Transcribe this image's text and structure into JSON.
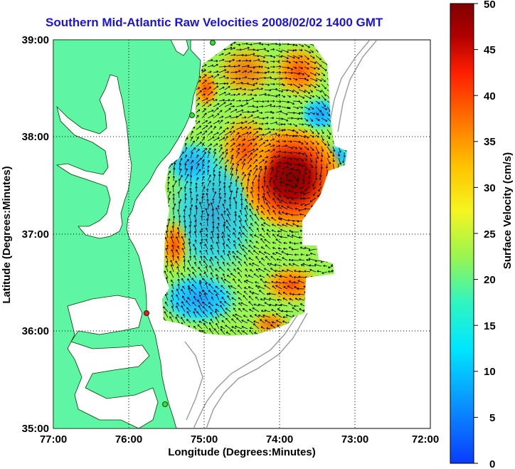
{
  "title": "Southern Mid-Atlantic Raw Velocities 2008/02/02 1400 GMT",
  "map": {
    "xlabel": "Longitude (Degrees:Minutes)",
    "ylabel": "Latitude (Degrees:Minutes)",
    "x_ticks": [
      "77:00",
      "76:00",
      "75:00",
      "74:00",
      "73:00",
      "72:00"
    ],
    "y_ticks": [
      "39:00",
      "38:00",
      "37:00",
      "36:00",
      "35:00"
    ],
    "grid": true
  },
  "colorbar": {
    "label": "Surface Velocity (cm/s)",
    "ticks": [
      "50",
      "45",
      "40",
      "35",
      "30",
      "25",
      "20",
      "15",
      "10",
      "5",
      "0"
    ],
    "min": 0,
    "max": 50
  },
  "colors": {
    "land": "#5ef5a4",
    "title": "#1a12e0",
    "station": "#3bdc3b",
    "station_active": "#e02020"
  }
}
